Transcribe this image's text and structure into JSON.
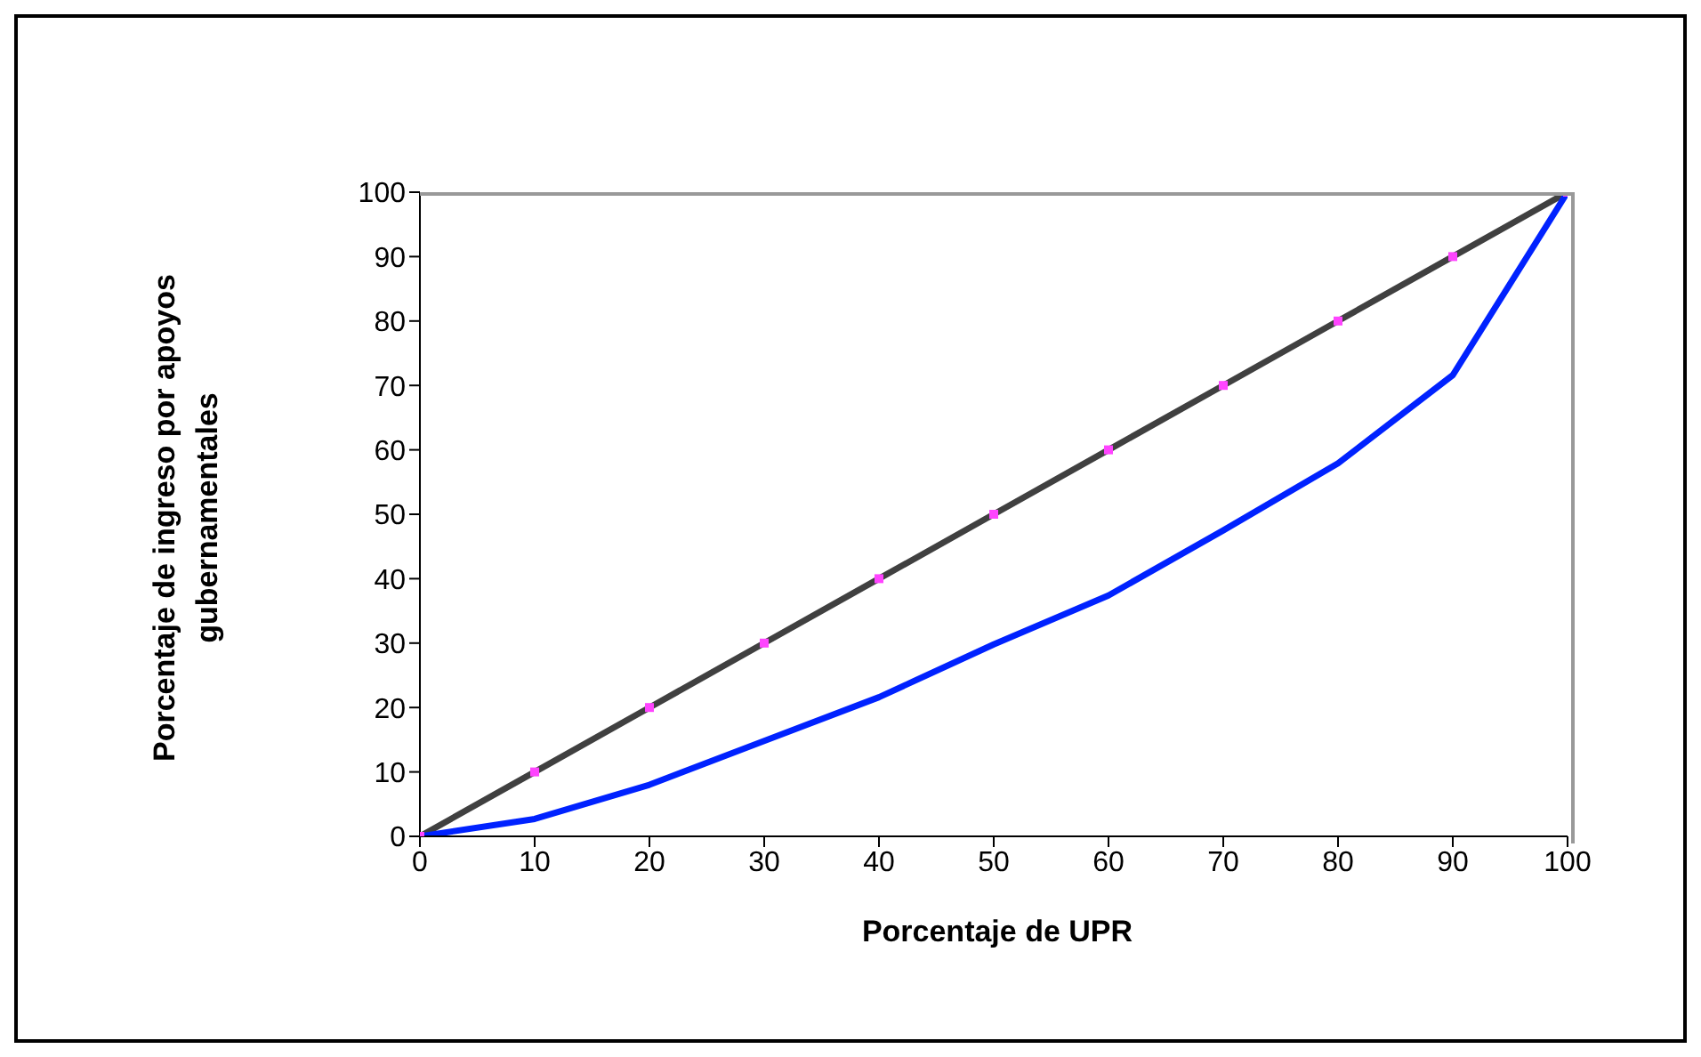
{
  "chart_data": {
    "type": "line",
    "xlabel": "Porcentaje de UPR",
    "ylabel": "Porcentaje de ingreso por apoyos gubernamentales",
    "x": [
      0,
      10,
      20,
      30,
      40,
      50,
      60,
      70,
      80,
      90,
      100
    ],
    "series": [
      {
        "color": "#404040",
        "marker": "square",
        "colors": [
          "#ff44ff",
          "#ff44ff",
          "#ff44ff",
          "#ff44ff",
          "#ff44ff",
          "#ff44ff",
          "#ff44ff",
          "#ff44ff",
          "#ff44ff",
          "#ff44ff",
          "#ff44ff"
        ],
        "values": [
          0,
          10,
          20,
          30,
          40,
          50,
          60,
          70,
          80,
          90,
          100
        ]
      },
      {
        "color": "#0022ff",
        "marker": "none",
        "values": [
          0,
          2.7,
          8,
          14.8,
          21.6,
          29.8,
          37.4,
          47.5,
          57.9,
          71.6,
          100
        ]
      }
    ],
    "xlim": [
      0,
      100
    ],
    "xticks": [
      0,
      10,
      20,
      30,
      40,
      50,
      60,
      70,
      80,
      90,
      100
    ],
    "ylim": [
      0,
      100
    ],
    "yticks": [
      0,
      10,
      20,
      30,
      40,
      50,
      60,
      70,
      80,
      90,
      100
    ],
    "grid": false,
    "legend": false,
    "line_style": "solid"
  }
}
